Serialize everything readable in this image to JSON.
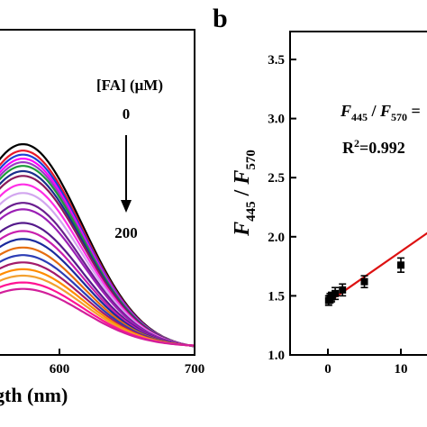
{
  "chart_data": [
    {
      "type": "line",
      "panel_label": "",
      "xlabel": "gth (nm)",
      "ylabel": "",
      "xlim": [
        480,
        700
      ],
      "x_ticks": [
        "600",
        "700"
      ],
      "grid": false,
      "annotation": {
        "series_title": "[FA] (μM)",
        "start": "0",
        "end": "200",
        "arrow": "down"
      },
      "curve_model": {
        "peak_nm": 573,
        "sigma_nm": 44,
        "baseline_at_700": 0.07
      },
      "series": [
        {
          "name": "0",
          "color": "#000000",
          "peak": 1.0
        },
        {
          "name": "",
          "color": "#e8182a",
          "peak": 0.968
        },
        {
          "name": "",
          "color": "#1d3fd6",
          "peak": 0.948
        },
        {
          "name": "",
          "color": "#ff00ff",
          "peak": 0.928
        },
        {
          "name": "",
          "color": "#9b3bc4",
          "peak": 0.91
        },
        {
          "name": "",
          "color": "#1e9a3a",
          "peak": 0.892
        },
        {
          "name": "",
          "color": "#1a2f8c",
          "peak": 0.866
        },
        {
          "name": "",
          "color": "#8b1a5a",
          "peak": 0.842
        },
        {
          "name": "",
          "color": "#ff2ee6",
          "peak": 0.8
        },
        {
          "name": "",
          "color": "#d2a6ef",
          "peak": 0.757
        },
        {
          "name": "",
          "color": "#6a1f8f",
          "peak": 0.708
        },
        {
          "name": "",
          "color": "#9b1fb5",
          "peak": 0.676
        },
        {
          "name": "",
          "color": "#551a8b",
          "peak": 0.608
        },
        {
          "name": "",
          "color": "#c91fae",
          "peak": 0.568
        },
        {
          "name": "",
          "color": "#1a2a9c",
          "peak": 0.528
        },
        {
          "name": "",
          "color": "#e56d10",
          "peak": 0.486
        },
        {
          "name": "",
          "color": "#2c3db5",
          "peak": 0.448
        },
        {
          "name": "",
          "color": "#a31a6b",
          "peak": 0.412
        },
        {
          "name": "",
          "color": "#ff8c00",
          "peak": 0.378
        },
        {
          "name": "",
          "color": "#f2a030",
          "peak": 0.346
        },
        {
          "name": "",
          "color": "#ff1493",
          "peak": 0.312
        },
        {
          "name": "200",
          "color": "#d21f9a",
          "peak": 0.28
        }
      ]
    },
    {
      "type": "scatter",
      "panel_label": "b",
      "xlabel": "",
      "ylabel_main": "F",
      "ylabel_sub1": "445",
      "ylabel_slash": " / ",
      "ylabel_sub2": "570",
      "xlim": [
        -3,
        17
      ],
      "ylim": [
        1.0,
        3.6
      ],
      "x_ticks": [
        "0",
        "10"
      ],
      "y_ticks": [
        "1.0",
        "1.5",
        "2.0",
        "2.5",
        "3.0",
        "3.5"
      ],
      "grid": false,
      "equation": {
        "f1": "F",
        "s1": "445",
        "slash": " / ",
        "f2": "F",
        "s2": "570",
        "tail": " ="
      },
      "r2_text": "R",
      "r2_sup": "2",
      "r2_value": "=0.992",
      "points": [
        {
          "x": 0.1,
          "y": 1.46,
          "err": 0.04
        },
        {
          "x": 0.3,
          "y": 1.48,
          "err": 0.04
        },
        {
          "x": 0.5,
          "y": 1.49,
          "err": 0.04
        },
        {
          "x": 1.0,
          "y": 1.52,
          "err": 0.05
        },
        {
          "x": 2.0,
          "y": 1.55,
          "err": 0.05
        },
        {
          "x": 5.0,
          "y": 1.62,
          "err": 0.05
        },
        {
          "x": 10.0,
          "y": 1.76,
          "err": 0.06
        }
      ],
      "fit": {
        "slope": 0.038,
        "intercept": 1.445,
        "color": "#dd1111"
      }
    }
  ]
}
